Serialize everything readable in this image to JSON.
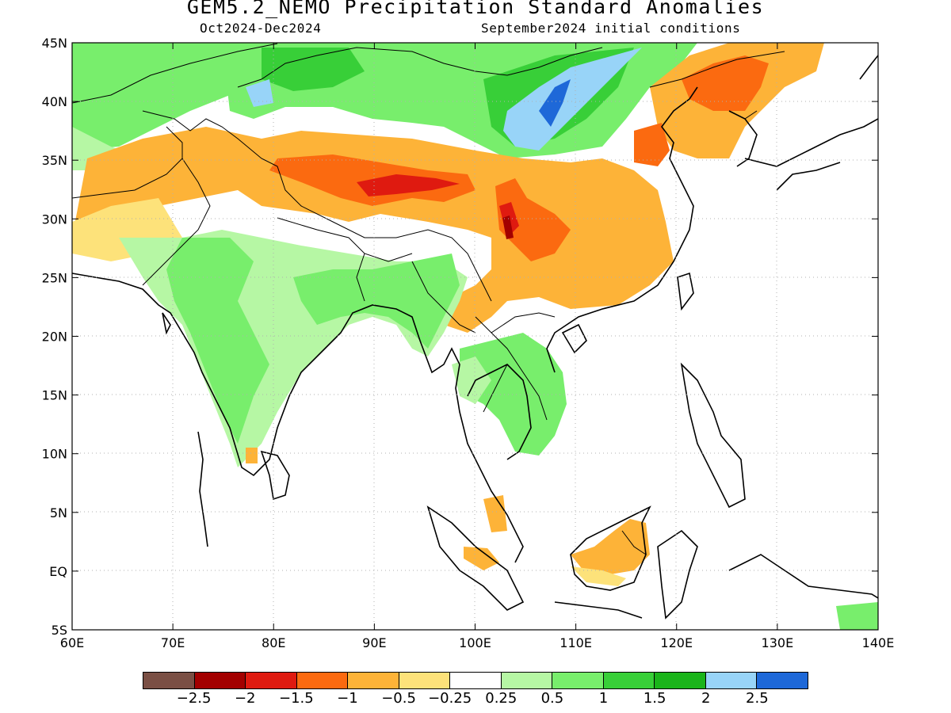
{
  "title": "GEM5.2_NEMO Precipitation Standard Anomalies",
  "subtitle_left": "Oct2024-Dec2024",
  "subtitle_right": "September2024 initial conditions",
  "map": {
    "region": "South & East Asia",
    "lon_range": [
      60,
      140
    ],
    "lat_range": [
      -5,
      45
    ],
    "x_ticks": [
      "60E",
      "70E",
      "80E",
      "90E",
      "100E",
      "110E",
      "120E",
      "130E",
      "140E"
    ],
    "y_ticks": [
      "45N",
      "40N",
      "35N",
      "30N",
      "25N",
      "20N",
      "15N",
      "10N",
      "5N",
      "EQ",
      "5S"
    ],
    "grid": "dotted",
    "anomaly_regions": [
      {
        "area": "Mongolia / North China",
        "lon": [
          103,
          113
        ],
        "lat": [
          35,
          45
        ],
        "value": 2.0
      },
      {
        "area": "North-central Mongolia",
        "lon": [
          90,
          110
        ],
        "lat": [
          40,
          45
        ],
        "value": 1.0
      },
      {
        "area": "Tibetan Plateau",
        "lon": [
          82,
          100
        ],
        "lat": [
          30,
          35
        ],
        "value": -1.5
      },
      {
        "area": "Sichuan / SW China",
        "lon": [
          102,
          108
        ],
        "lat": [
          26,
          32
        ],
        "value": -2.0
      },
      {
        "area": "South China",
        "lon": [
          100,
          120
        ],
        "lat": [
          22,
          30
        ],
        "value": -0.5
      },
      {
        "area": "Korea / NE China",
        "lon": [
          120,
          130
        ],
        "lat": [
          35,
          45
        ],
        "value": -1.5
      },
      {
        "area": "Pakistan / Afghanistan",
        "lon": [
          62,
          78
        ],
        "lat": [
          28,
          37
        ],
        "value": -0.5
      },
      {
        "area": "Central India",
        "lon": [
          70,
          85
        ],
        "lat": [
          15,
          27
        ],
        "value": 1.0
      },
      {
        "area": "Bangladesh / Myanmar",
        "lon": [
          88,
          98
        ],
        "lat": [
          18,
          27
        ],
        "value": 1.0
      },
      {
        "area": "Indochina",
        "lon": [
          98,
          110
        ],
        "lat": [
          10,
          20
        ],
        "value": 0.5
      },
      {
        "area": "Borneo",
        "lon": [
          110,
          119
        ],
        "lat": [
          0,
          4
        ],
        "value": -0.5
      },
      {
        "area": "Central Asia",
        "lon": [
          60,
          75
        ],
        "lat": [
          37,
          45
        ],
        "value": 0.5
      }
    ]
  },
  "colorbar": {
    "colors": [
      "#7a4f44",
      "#a30000",
      "#df1a10",
      "#fb6a10",
      "#fdb338",
      "#fde27a",
      "#ffffff",
      "#b6f7a4",
      "#78ee6c",
      "#38cf38",
      "#1ab41a",
      "#98d4f8",
      "#1e68d8"
    ],
    "labels": [
      "−2.5",
      "−2",
      "−1.5",
      "−1",
      "−0.5",
      "−0.25",
      "0.25",
      "0.5",
      "1",
      "1.5",
      "2",
      "2.5"
    ]
  }
}
